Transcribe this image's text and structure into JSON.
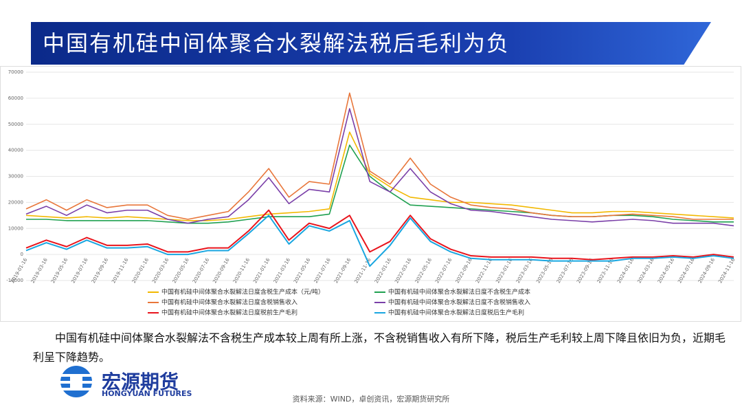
{
  "header": {
    "title": "中国有机硅中间体聚合水裂解法税后毛利为负"
  },
  "chart_data": {
    "type": "line",
    "categories": [
      "2019-01-16",
      "2019-03-16",
      "2019-05-16",
      "2019-07-16",
      "2019-09-16",
      "2019-11-16",
      "2020-01-16",
      "2020-03-16",
      "2020-05-16",
      "2020-07-16",
      "2020-09-16",
      "2020-11-16",
      "2021-01-16",
      "2021-03-16",
      "2021-05-16",
      "2021-07-16",
      "2021-09-16",
      "2021-11-16",
      "2022-01-16",
      "2022-03-16",
      "2022-05-16",
      "2022-07-16",
      "2022-09-16",
      "2022-11-16",
      "2023-01-16",
      "2023-03-16",
      "2023-05-16",
      "2023-07-16",
      "2023-09-16",
      "2023-11-16",
      "2024-01-16",
      "2024-03-16",
      "2024-05-16",
      "2024-07-16",
      "2024-09-16",
      "2024-11-16"
    ],
    "series": [
      {
        "name": "中国有机硅中间体聚合水裂解法日度含税生产成本（元/吨）",
        "color": "#f2b800",
        "values": [
          15000,
          14500,
          14000,
          14500,
          14000,
          14500,
          14000,
          13500,
          13000,
          13000,
          13500,
          14500,
          15500,
          16000,
          16500,
          17500,
          47000,
          31000,
          26000,
          22000,
          21000,
          20000,
          20000,
          19500,
          19000,
          18000,
          17000,
          16000,
          16000,
          16500,
          16500,
          16000,
          15500,
          15000,
          14500,
          14000
        ]
      },
      {
        "name": "中国有机硅中间体聚合水裂解法日度不含税生产成本",
        "color": "#1fa050",
        "values": [
          13500,
          13500,
          13000,
          13000,
          13000,
          13000,
          13000,
          12500,
          12000,
          12000,
          12500,
          13500,
          14500,
          14500,
          14500,
          15500,
          42000,
          30000,
          24000,
          19000,
          18500,
          18000,
          17500,
          17000,
          16500,
          16000,
          15000,
          14500,
          14500,
          15000,
          15000,
          14500,
          13500,
          13000,
          12500,
          12500
        ]
      },
      {
        "name": "中国有机硅中间体聚合水裂解法日度含税销售收入",
        "color": "#e8763a",
        "values": [
          17500,
          21000,
          17000,
          21000,
          18000,
          19000,
          19000,
          15000,
          13500,
          15000,
          16500,
          24000,
          33000,
          22000,
          28000,
          27000,
          62000,
          32000,
          27000,
          37000,
          27000,
          22000,
          19000,
          18000,
          17500,
          16000,
          15000,
          14500,
          14500,
          15000,
          15500,
          15000,
          14500,
          13500,
          13500,
          13500
        ]
      },
      {
        "name": "中国有机硅中间体聚合水裂解法日度不含税销售收入",
        "color": "#7a3fa8",
        "values": [
          15500,
          18500,
          15000,
          19000,
          16000,
          17000,
          17000,
          13500,
          12000,
          13500,
          14500,
          21000,
          29500,
          19500,
          25000,
          24000,
          56000,
          28000,
          24000,
          33000,
          24000,
          19500,
          17000,
          16500,
          15500,
          14500,
          13500,
          13000,
          12500,
          13000,
          13500,
          13000,
          12000,
          12000,
          12000,
          11000
        ]
      },
      {
        "name": "中国有机硅中间体聚合水裂解法日度税前生产毛利",
        "color": "#e8141c",
        "values": [
          2500,
          5500,
          3000,
          6500,
          3500,
          3500,
          4000,
          1000,
          1000,
          2500,
          2500,
          9000,
          17000,
          5500,
          12000,
          10000,
          15000,
          1000,
          5000,
          15000,
          6000,
          2000,
          -500,
          -1000,
          -1000,
          -1000,
          -1500,
          -1500,
          -2000,
          -1500,
          -1000,
          -1000,
          -500,
          -1000,
          0,
          -1000
        ]
      },
      {
        "name": "中国有机硅中间体聚合水裂解法日度税后生产毛利",
        "color": "#19a6e0",
        "values": [
          1500,
          4500,
          2000,
          5500,
          2500,
          2500,
          3000,
          0,
          0,
          1500,
          1500,
          8000,
          15000,
          4000,
          11000,
          9000,
          13000,
          -4500,
          3500,
          14000,
          5000,
          1000,
          -1500,
          -2000,
          -2000,
          -2000,
          -2500,
          -2500,
          -2500,
          -2500,
          -1500,
          -1500,
          -1000,
          -1500,
          -500,
          -1500
        ]
      }
    ],
    "ylim": [
      -10000,
      70000
    ],
    "yticks": [
      -10000,
      0,
      10000,
      20000,
      30000,
      40000,
      50000,
      60000,
      70000
    ],
    "grid": true
  },
  "footer": {
    "paragraph": "中国有机硅中间体聚合水裂解法不含税生产成本较上周有所上涨，不含税销售收入有所下降，税后生产毛利较上周下降且依旧为负，近期毛利呈下降趋势。",
    "logo_cn": "宏源期货",
    "logo_en": "HONGYUAN FUTURES",
    "source": "资料来源：WIND，卓创资讯，宏源期货研究所"
  }
}
